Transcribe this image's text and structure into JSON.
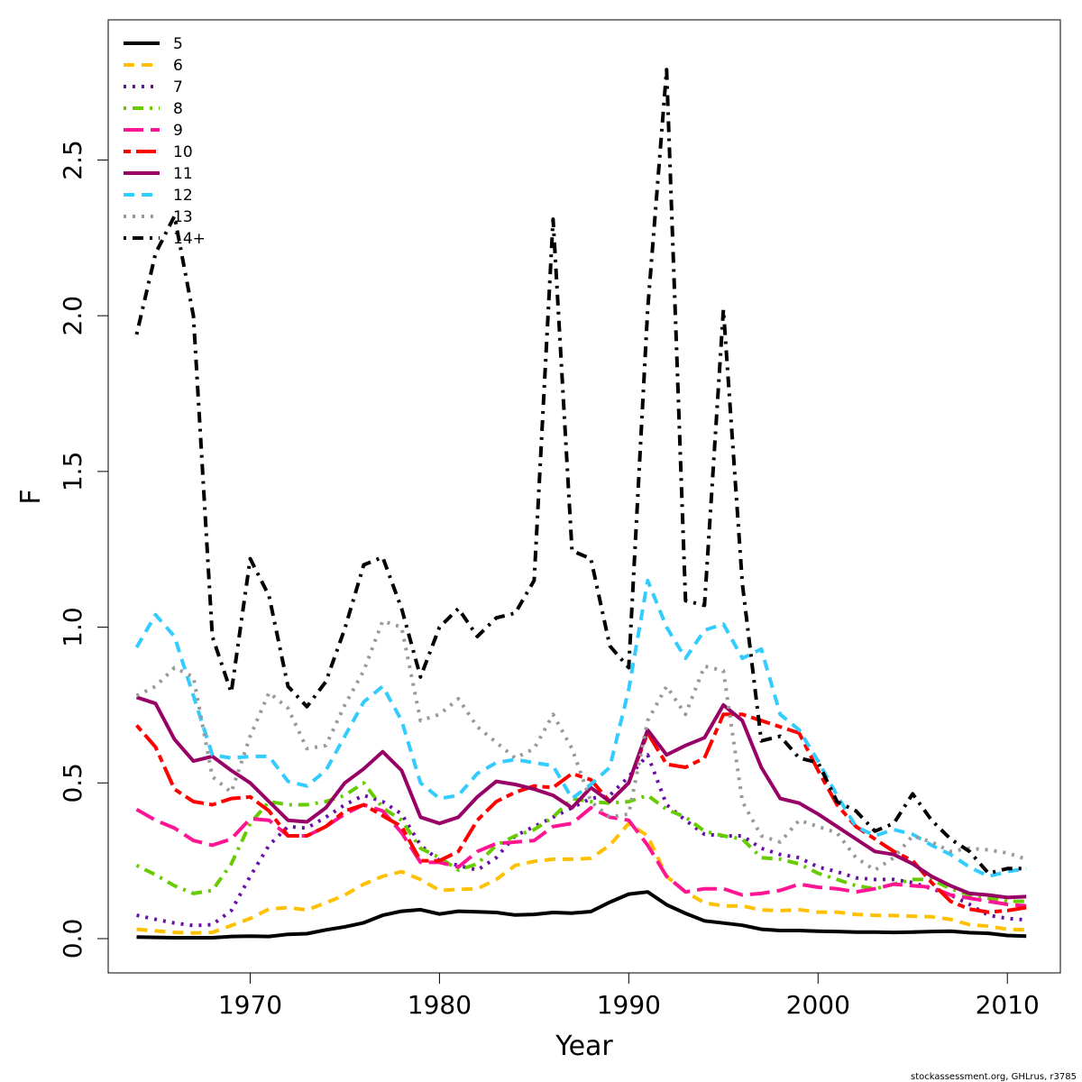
{
  "chart_data": {
    "type": "line",
    "xlabel": "Year",
    "ylabel": "F",
    "xlim": [
      1962.5,
      2012.8
    ],
    "ylim": [
      -0.11,
      2.95
    ],
    "xticks": [
      1970,
      1980,
      1990,
      2000,
      2010
    ],
    "xtick_labels": [
      "1970",
      "1980",
      "1990",
      "2000",
      "2010"
    ],
    "yticks": [
      0.0,
      0.5,
      1.0,
      1.5,
      2.0,
      2.5
    ],
    "ytick_labels": [
      "0.0",
      "0.5",
      "1.0",
      "1.5",
      "2.0",
      "2.5"
    ],
    "legend_position": "top-left",
    "footer": "stockassessment.org, GHLrus, r3785",
    "x": [
      1964,
      1965,
      1966,
      1967,
      1968,
      1969,
      1970,
      1971,
      1972,
      1973,
      1974,
      1975,
      1976,
      1977,
      1978,
      1979,
      1980,
      1981,
      1982,
      1983,
      1984,
      1985,
      1986,
      1987,
      1988,
      1989,
      1990,
      1991,
      1992,
      1993,
      1994,
      1995,
      1996,
      1997,
      1998,
      1999,
      2000,
      2001,
      2002,
      2003,
      2004,
      2005,
      2006,
      2007,
      2008,
      2009,
      2010,
      2011
    ],
    "series": [
      {
        "name": "5",
        "color": "#000000",
        "dash": "solid",
        "values": [
          0.005,
          0.004,
          0.003,
          0.003,
          0.003,
          0.007,
          0.008,
          0.007,
          0.014,
          0.016,
          0.028,
          0.038,
          0.051,
          0.075,
          0.088,
          0.093,
          0.079,
          0.088,
          0.086,
          0.084,
          0.076,
          0.078,
          0.084,
          0.082,
          0.087,
          0.117,
          0.143,
          0.15,
          0.109,
          0.081,
          0.057,
          0.05,
          0.043,
          0.03,
          0.026,
          0.026,
          0.024,
          0.023,
          0.021,
          0.021,
          0.02,
          0.021,
          0.023,
          0.024,
          0.019,
          0.017,
          0.01,
          0.008
        ]
      },
      {
        "name": "6",
        "color": "#FFC000",
        "dash": "dash",
        "values": [
          0.03,
          0.025,
          0.02,
          0.018,
          0.02,
          0.042,
          0.065,
          0.095,
          0.1,
          0.092,
          0.115,
          0.14,
          0.175,
          0.2,
          0.215,
          0.19,
          0.155,
          0.158,
          0.16,
          0.19,
          0.235,
          0.248,
          0.255,
          0.255,
          0.258,
          0.3,
          0.37,
          0.33,
          0.2,
          0.15,
          0.115,
          0.105,
          0.105,
          0.092,
          0.09,
          0.093,
          0.085,
          0.085,
          0.078,
          0.075,
          0.074,
          0.072,
          0.07,
          0.062,
          0.045,
          0.04,
          0.03,
          0.028
        ]
      },
      {
        "name": "7",
        "color": "#6A0DAD",
        "dash": "dot",
        "values": [
          0.075,
          0.062,
          0.05,
          0.042,
          0.045,
          0.09,
          0.2,
          0.3,
          0.36,
          0.355,
          0.39,
          0.43,
          0.46,
          0.44,
          0.4,
          0.3,
          0.25,
          0.235,
          0.22,
          0.26,
          0.33,
          0.36,
          0.39,
          0.42,
          0.45,
          0.46,
          0.52,
          0.59,
          0.43,
          0.38,
          0.335,
          0.33,
          0.33,
          0.29,
          0.27,
          0.26,
          0.23,
          0.215,
          0.195,
          0.19,
          0.19,
          0.18,
          0.16,
          0.14,
          0.11,
          0.075,
          0.065,
          0.06
        ]
      },
      {
        "name": "8",
        "color": "#66CC00",
        "dash": "dashdot",
        "values": [
          0.235,
          0.205,
          0.17,
          0.145,
          0.155,
          0.24,
          0.37,
          0.44,
          0.43,
          0.43,
          0.44,
          0.46,
          0.5,
          0.42,
          0.38,
          0.29,
          0.26,
          0.22,
          0.24,
          0.3,
          0.33,
          0.35,
          0.39,
          0.45,
          0.44,
          0.435,
          0.44,
          0.46,
          0.415,
          0.39,
          0.345,
          0.33,
          0.32,
          0.26,
          0.255,
          0.24,
          0.21,
          0.19,
          0.17,
          0.16,
          0.175,
          0.19,
          0.19,
          0.16,
          0.14,
          0.13,
          0.12,
          0.12
        ]
      },
      {
        "name": "9",
        "color": "#FF1493",
        "dash": "longdash",
        "values": [
          0.415,
          0.38,
          0.355,
          0.315,
          0.3,
          0.32,
          0.385,
          0.38,
          0.33,
          0.33,
          0.36,
          0.4,
          0.43,
          0.41,
          0.34,
          0.245,
          0.245,
          0.23,
          0.28,
          0.305,
          0.31,
          0.315,
          0.36,
          0.37,
          0.42,
          0.39,
          0.38,
          0.3,
          0.2,
          0.15,
          0.16,
          0.16,
          0.14,
          0.145,
          0.155,
          0.175,
          0.165,
          0.16,
          0.15,
          0.16,
          0.175,
          0.17,
          0.165,
          0.14,
          0.13,
          0.12,
          0.11,
          0.105
        ]
      },
      {
        "name": "10",
        "color": "#FF0000",
        "dash": "twodash",
        "values": [
          0.685,
          0.615,
          0.48,
          0.44,
          0.43,
          0.45,
          0.455,
          0.41,
          0.33,
          0.33,
          0.36,
          0.41,
          0.43,
          0.395,
          0.36,
          0.25,
          0.25,
          0.28,
          0.38,
          0.44,
          0.47,
          0.49,
          0.485,
          0.53,
          0.51,
          0.44,
          0.5,
          0.66,
          0.56,
          0.55,
          0.58,
          0.72,
          0.72,
          0.7,
          0.68,
          0.66,
          0.54,
          0.43,
          0.36,
          0.32,
          0.28,
          0.25,
          0.18,
          0.12,
          0.095,
          0.085,
          0.09,
          0.1
        ]
      },
      {
        "name": "11",
        "color": "#990066",
        "dash": "solid",
        "values": [
          0.775,
          0.755,
          0.64,
          0.57,
          0.585,
          0.54,
          0.5,
          0.44,
          0.38,
          0.375,
          0.42,
          0.5,
          0.545,
          0.6,
          0.54,
          0.39,
          0.37,
          0.39,
          0.455,
          0.505,
          0.495,
          0.48,
          0.46,
          0.42,
          0.485,
          0.44,
          0.5,
          0.67,
          0.59,
          0.62,
          0.645,
          0.75,
          0.7,
          0.55,
          0.45,
          0.435,
          0.4,
          0.36,
          0.32,
          0.28,
          0.27,
          0.24,
          0.2,
          0.17,
          0.145,
          0.14,
          0.132,
          0.135
        ]
      },
      {
        "name": "12",
        "color": "#33CCFF",
        "dash": "dash",
        "values": [
          0.935,
          1.04,
          0.97,
          0.78,
          0.59,
          0.58,
          0.585,
          0.585,
          0.505,
          0.49,
          0.54,
          0.65,
          0.76,
          0.81,
          0.7,
          0.5,
          0.45,
          0.46,
          0.53,
          0.565,
          0.575,
          0.565,
          0.555,
          0.45,
          0.495,
          0.55,
          0.8,
          1.15,
          1.0,
          0.9,
          0.99,
          1.01,
          0.9,
          0.93,
          0.72,
          0.67,
          0.57,
          0.46,
          0.36,
          0.33,
          0.35,
          0.335,
          0.3,
          0.27,
          0.23,
          0.2,
          0.215,
          0.225
        ]
      },
      {
        "name": "13",
        "color": "#999999",
        "dash": "dot",
        "values": [
          0.78,
          0.81,
          0.87,
          0.84,
          0.52,
          0.47,
          0.65,
          0.79,
          0.74,
          0.61,
          0.62,
          0.75,
          0.86,
          1.02,
          1.0,
          0.7,
          0.72,
          0.77,
          0.68,
          0.63,
          0.58,
          0.61,
          0.72,
          0.61,
          0.44,
          0.39,
          0.4,
          0.7,
          0.81,
          0.72,
          0.875,
          0.86,
          0.44,
          0.33,
          0.31,
          0.38,
          0.36,
          0.34,
          0.26,
          0.22,
          0.26,
          0.33,
          0.31,
          0.28,
          0.29,
          0.285,
          0.275,
          0.255
        ]
      },
      {
        "name": "14+",
        "color": "#000000",
        "dash": "dashdot",
        "values": [
          1.94,
          2.2,
          2.32,
          2.0,
          0.97,
          0.79,
          1.22,
          1.1,
          0.81,
          0.745,
          0.825,
          0.995,
          1.2,
          1.225,
          1.06,
          0.84,
          1.0,
          1.06,
          0.97,
          1.03,
          1.045,
          1.15,
          2.31,
          1.245,
          1.22,
          0.94,
          0.87,
          2.02,
          2.79,
          1.085,
          1.07,
          2.02,
          1.14,
          0.635,
          0.65,
          0.58,
          0.565,
          0.44,
          0.41,
          0.345,
          0.37,
          0.465,
          0.38,
          0.32,
          0.28,
          0.21,
          0.225,
          0.225
        ]
      }
    ]
  }
}
